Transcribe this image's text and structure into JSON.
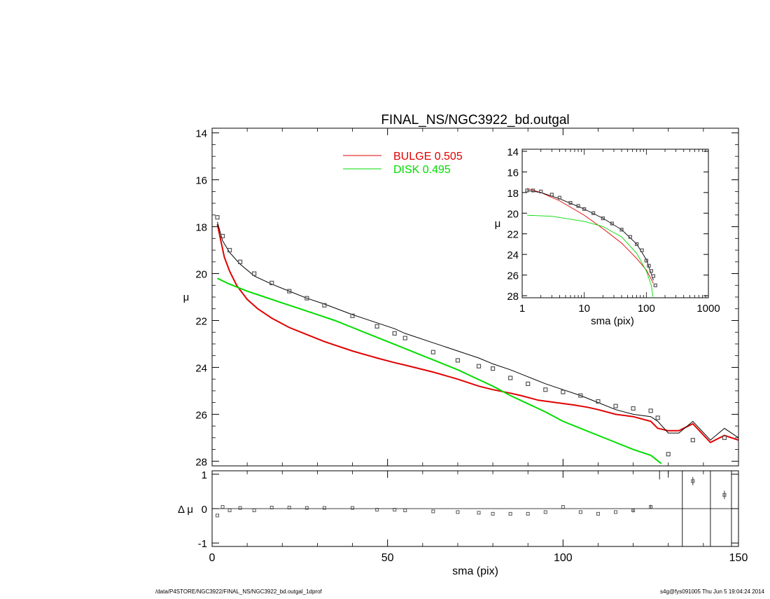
{
  "footer": {
    "path": "/data/P4STORE/NGC3922/FINAL_NS/NGC3922_bd.outgal_1dprof",
    "stamp": "s4g@fys091005  Thu Jun  5 19:04:24 2014"
  },
  "chart_data": [
    {
      "id": "main",
      "type": "line",
      "title": "FINAL_NS/NGC3922_bd.outgal",
      "xlabel": "",
      "ylabel": "μ",
      "xlim": [
        0,
        150
      ],
      "ylim": [
        28.2,
        13.8
      ],
      "yticks": [
        "14",
        "16",
        "18",
        "20",
        "22",
        "24",
        "26",
        "28"
      ],
      "legend": {
        "placement": "top-center",
        "entries": [
          {
            "label": "BULGE  0.505",
            "color": "#e00000"
          },
          {
            "label": "DISK  0.495",
            "color": "#00dd00"
          }
        ]
      },
      "series": [
        {
          "name": "BULGE  0.505",
          "color": "#e00000",
          "x": [
            1.5,
            2.5,
            3.5,
            5,
            7,
            10,
            13,
            17,
            22,
            27,
            32,
            40,
            47,
            52,
            55,
            63,
            70,
            76,
            80,
            85,
            88,
            93,
            98,
            103,
            107,
            110,
            115,
            120,
            125,
            127,
            130,
            133,
            137,
            142,
            146,
            150
          ],
          "y": [
            17.9,
            18.6,
            19.3,
            19.9,
            20.5,
            21.1,
            21.5,
            21.9,
            22.3,
            22.6,
            22.9,
            23.3,
            23.6,
            23.8,
            23.9,
            24.2,
            24.5,
            24.8,
            24.95,
            25.1,
            25.2,
            25.4,
            25.5,
            25.6,
            25.7,
            25.8,
            26.0,
            26.1,
            26.3,
            26.6,
            26.7,
            26.7,
            26.4,
            27.2,
            26.9,
            27.1
          ]
        },
        {
          "name": "DISK  0.495",
          "color": "#00dd00",
          "x": [
            1.5,
            5,
            10,
            15,
            20,
            25,
            30,
            35,
            40,
            45,
            50,
            55,
            60,
            65,
            70,
            75,
            80,
            85,
            90,
            95,
            100,
            105,
            110,
            115,
            120,
            125,
            128
          ],
          "y": [
            20.2,
            20.45,
            20.75,
            21.0,
            21.25,
            21.5,
            21.75,
            22.0,
            22.3,
            22.6,
            22.9,
            23.2,
            23.5,
            23.8,
            24.1,
            24.45,
            24.8,
            25.2,
            25.55,
            25.9,
            26.3,
            26.6,
            26.9,
            27.2,
            27.5,
            27.75,
            28.1
          ]
        },
        {
          "name": "",
          "color": "#000000",
          "x": [
            1.5,
            3,
            5,
            8,
            12,
            17,
            22,
            27,
            32,
            40,
            47,
            52,
            55,
            63,
            70,
            76,
            80,
            85,
            90,
            95,
            100,
            105,
            110,
            115,
            120,
            125,
            127,
            130,
            133,
            137,
            142,
            146,
            150
          ],
          "y": [
            17.8,
            18.6,
            19.1,
            19.6,
            20.1,
            20.45,
            20.75,
            21.05,
            21.3,
            21.75,
            22.1,
            22.35,
            22.55,
            22.95,
            23.3,
            23.6,
            23.85,
            24.1,
            24.4,
            24.7,
            24.95,
            25.2,
            25.5,
            25.8,
            26.0,
            26.1,
            26.3,
            26.8,
            26.8,
            26.3,
            27.1,
            26.6,
            27.0
          ]
        },
        {
          "name": "",
          "color": "#555555",
          "marker": "square",
          "x": [
            1.5,
            3,
            5,
            8,
            12,
            17,
            22,
            27,
            32,
            40,
            47,
            52,
            55,
            63,
            70,
            76,
            80,
            85,
            90,
            95,
            100,
            105,
            110,
            115,
            120,
            125,
            127,
            130,
            137,
            146
          ],
          "y": [
            17.6,
            18.4,
            19.0,
            19.5,
            20.0,
            20.4,
            20.75,
            21.05,
            21.35,
            21.8,
            22.25,
            22.55,
            22.75,
            23.35,
            23.7,
            23.95,
            24.05,
            24.45,
            24.7,
            24.95,
            25.05,
            25.2,
            25.45,
            25.65,
            25.75,
            25.85,
            26.15,
            27.7,
            27.1,
            27.0
          ]
        }
      ]
    },
    {
      "id": "residual",
      "type": "scatter",
      "xlabel": "sma (pix)",
      "ylabel": "Δ μ",
      "xlim": [
        0,
        150
      ],
      "ylim": [
        -1.1,
        1.1
      ],
      "xticks": [
        "0",
        "50",
        "100",
        "150"
      ],
      "yticks": [
        "1",
        "0",
        "-1"
      ],
      "series": [
        {
          "name": "",
          "color": "#555555",
          "marker": "square",
          "x": [
            1.5,
            3,
            5,
            8,
            12,
            17,
            22,
            27,
            32,
            40,
            47,
            52,
            55,
            63,
            70,
            76,
            80,
            85,
            90,
            95,
            100,
            105,
            110,
            115,
            120,
            125,
            137,
            146
          ],
          "y": [
            -0.2,
            0.05,
            -0.05,
            0.02,
            -0.05,
            0.03,
            0.03,
            0.02,
            0.02,
            0.02,
            -0.03,
            -0.03,
            -0.05,
            -0.08,
            -0.1,
            -0.12,
            -0.15,
            -0.15,
            -0.15,
            -0.1,
            0.05,
            -0.1,
            -0.15,
            -0.1,
            -0.05,
            0.05,
            0.8,
            0.4
          ]
        }
      ]
    },
    {
      "id": "inset",
      "type": "line",
      "xlabel": "sma (pix)",
      "ylabel": "μ",
      "xscale": "log",
      "xlim": [
        1,
        1000
      ],
      "ylim": [
        28.2,
        13.8
      ],
      "xticks": [
        "1",
        "10",
        "100",
        "1000"
      ],
      "yticks": [
        "14",
        "16",
        "18",
        "20",
        "22",
        "24",
        "26",
        "28"
      ],
      "series": [
        {
          "name": "",
          "color": "#e00000",
          "x": [
            1.2,
            2,
            4,
            10,
            20,
            40,
            70,
            100,
            130
          ],
          "y": [
            17.6,
            18.0,
            18.8,
            20.2,
            21.5,
            22.9,
            24.4,
            25.5,
            26.8
          ]
        },
        {
          "name": "",
          "color": "#00dd00",
          "x": [
            1.2,
            3,
            10,
            20,
            40,
            70,
            100,
            120,
            128
          ],
          "y": [
            20.2,
            20.3,
            20.8,
            21.3,
            22.3,
            23.9,
            25.6,
            27.0,
            28.1
          ]
        },
        {
          "name": "",
          "color": "#000000",
          "x": [
            1.2,
            2,
            4,
            10,
            20,
            40,
            70,
            100,
            130
          ],
          "y": [
            17.8,
            18.0,
            18.6,
            19.6,
            20.5,
            21.6,
            23.0,
            24.5,
            26.5
          ]
        },
        {
          "name": "",
          "color": "#555555",
          "marker": "square",
          "x": [
            1.2,
            1.5,
            2,
            3,
            4,
            6,
            8,
            10,
            14,
            20,
            28,
            40,
            55,
            70,
            85,
            100,
            110,
            120,
            130,
            140
          ],
          "y": [
            17.8,
            17.8,
            17.9,
            18.2,
            18.5,
            19.0,
            19.3,
            19.6,
            20.0,
            20.5,
            21.0,
            21.6,
            22.3,
            23.0,
            23.6,
            24.6,
            25.1,
            25.6,
            26.1,
            27.0
          ]
        }
      ]
    }
  ]
}
